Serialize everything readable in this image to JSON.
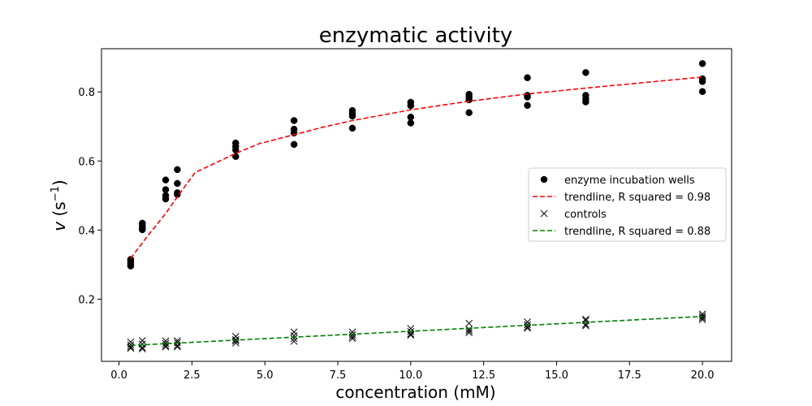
{
  "chart_data": {
    "type": "scatter",
    "title": "enzymatic activity",
    "xlabel": "concentration (mM)",
    "ylabel_main": "v",
    "ylabel_unit": "s",
    "ylabel_exp": "−1",
    "xlim": [
      -0.6,
      21.0
    ],
    "ylim": [
      0.02,
      0.925
    ],
    "xticks": [
      0.0,
      2.5,
      5.0,
      7.5,
      10.0,
      12.5,
      15.0,
      17.5,
      20.0
    ],
    "xtick_labels": [
      "0.0",
      "2.5",
      "5.0",
      "7.5",
      "10.0",
      "12.5",
      "15.0",
      "17.5",
      "20.0"
    ],
    "yticks": [
      0.2,
      0.4,
      0.6,
      0.8
    ],
    "ytick_labels": [
      "0.2",
      "0.4",
      "0.6",
      "0.8"
    ],
    "grid": false,
    "legend_position": "right",
    "series": [
      {
        "name": "enzyme incubation wells",
        "kind": "scatter",
        "marker": "circle",
        "color": "#000000",
        "points": [
          [
            0.4,
            0.315
          ],
          [
            0.4,
            0.308
          ],
          [
            0.4,
            0.302
          ],
          [
            0.4,
            0.296
          ],
          [
            0.8,
            0.42
          ],
          [
            0.8,
            0.413
          ],
          [
            0.8,
            0.406
          ],
          [
            0.8,
            0.401
          ],
          [
            1.6,
            0.545
          ],
          [
            1.6,
            0.517
          ],
          [
            1.6,
            0.5
          ],
          [
            1.6,
            0.49
          ],
          [
            2.0,
            0.575
          ],
          [
            2.0,
            0.535
          ],
          [
            2.0,
            0.508
          ],
          [
            2.0,
            0.503
          ],
          [
            4.0,
            0.652
          ],
          [
            4.0,
            0.642
          ],
          [
            4.0,
            0.632
          ],
          [
            4.0,
            0.613
          ],
          [
            6.0,
            0.717
          ],
          [
            6.0,
            0.692
          ],
          [
            6.0,
            0.681
          ],
          [
            6.0,
            0.648
          ],
          [
            8.0,
            0.746
          ],
          [
            8.0,
            0.738
          ],
          [
            8.0,
            0.73
          ],
          [
            8.0,
            0.695
          ],
          [
            10.0,
            0.77
          ],
          [
            10.0,
            0.76
          ],
          [
            10.0,
            0.727
          ],
          [
            10.0,
            0.71
          ],
          [
            12.0,
            0.793
          ],
          [
            12.0,
            0.785
          ],
          [
            12.0,
            0.777
          ],
          [
            12.0,
            0.74
          ],
          [
            14.0,
            0.841
          ],
          [
            14.0,
            0.79
          ],
          [
            14.0,
            0.785
          ],
          [
            14.0,
            0.761
          ],
          [
            16.0,
            0.856
          ],
          [
            16.0,
            0.79
          ],
          [
            16.0,
            0.78
          ],
          [
            16.0,
            0.771
          ],
          [
            20.0,
            0.882
          ],
          [
            20.0,
            0.838
          ],
          [
            20.0,
            0.83
          ],
          [
            20.0,
            0.801
          ]
        ]
      },
      {
        "name": "trendline, R squared = 0.98",
        "kind": "line",
        "dash": "dashed",
        "color": "#ff0000",
        "points": [
          [
            0.4,
            0.318
          ],
          [
            1.0,
            0.385
          ],
          [
            1.6,
            0.448
          ],
          [
            2.0,
            0.496
          ],
          [
            2.6,
            0.566
          ],
          [
            4.0,
            0.622
          ],
          [
            4.8,
            0.65
          ],
          [
            6.0,
            0.676
          ],
          [
            7.0,
            0.698
          ],
          [
            8.0,
            0.717
          ],
          [
            10.0,
            0.748
          ],
          [
            12.0,
            0.773
          ],
          [
            14.0,
            0.794
          ],
          [
            16.0,
            0.811
          ],
          [
            18.0,
            0.827
          ],
          [
            20.0,
            0.843
          ]
        ]
      },
      {
        "name": "controls",
        "kind": "scatter",
        "marker": "x",
        "color": "#000000",
        "points": [
          [
            0.4,
            0.076
          ],
          [
            0.4,
            0.068
          ],
          [
            0.4,
            0.062
          ],
          [
            0.4,
            0.058
          ],
          [
            0.8,
            0.08
          ],
          [
            0.8,
            0.07
          ],
          [
            0.8,
            0.06
          ],
          [
            0.8,
            0.056
          ],
          [
            1.6,
            0.079
          ],
          [
            1.6,
            0.072
          ],
          [
            1.6,
            0.066
          ],
          [
            1.6,
            0.062
          ],
          [
            2.0,
            0.08
          ],
          [
            2.0,
            0.074
          ],
          [
            2.0,
            0.066
          ],
          [
            2.0,
            0.062
          ],
          [
            4.0,
            0.092
          ],
          [
            4.0,
            0.083
          ],
          [
            4.0,
            0.079
          ],
          [
            4.0,
            0.073
          ],
          [
            6.0,
            0.105
          ],
          [
            6.0,
            0.094
          ],
          [
            6.0,
            0.086
          ],
          [
            6.0,
            0.078
          ],
          [
            8.0,
            0.105
          ],
          [
            8.0,
            0.097
          ],
          [
            8.0,
            0.091
          ],
          [
            8.0,
            0.086
          ],
          [
            10.0,
            0.115
          ],
          [
            10.0,
            0.106
          ],
          [
            10.0,
            0.099
          ],
          [
            10.0,
            0.096
          ],
          [
            12.0,
            0.13
          ],
          [
            12.0,
            0.113
          ],
          [
            12.0,
            0.108
          ],
          [
            12.0,
            0.103
          ],
          [
            14.0,
            0.134
          ],
          [
            14.0,
            0.126
          ],
          [
            14.0,
            0.12
          ],
          [
            14.0,
            0.116
          ],
          [
            16.0,
            0.142
          ],
          [
            16.0,
            0.138
          ],
          [
            16.0,
            0.127
          ],
          [
            16.0,
            0.123
          ],
          [
            20.0,
            0.157
          ],
          [
            20.0,
            0.151
          ],
          [
            20.0,
            0.146
          ],
          [
            20.0,
            0.141
          ]
        ]
      },
      {
        "name": "trendline, R squared = 0.88",
        "kind": "line",
        "dash": "dashed",
        "color": "#008000",
        "points": [
          [
            0.4,
            0.066
          ],
          [
            20.0,
            0.15
          ]
        ]
      }
    ]
  }
}
